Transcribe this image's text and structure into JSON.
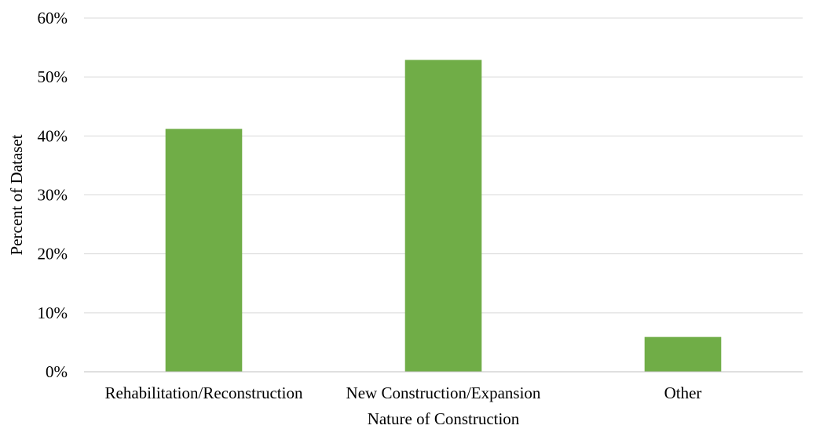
{
  "chart_data": {
    "type": "bar",
    "title": "",
    "xlabel": "Nature of Construction",
    "ylabel": "Percent of Dataset",
    "categories": [
      "Rehabilitation/Reconstruction",
      "New Construction/Expansion",
      "Other"
    ],
    "values": [
      41.2,
      52.9,
      5.9
    ],
    "ylim": [
      0,
      60
    ],
    "yticks": [
      0,
      10,
      20,
      30,
      40,
      50,
      60
    ],
    "ytick_labels": [
      "0%",
      "10%",
      "20%",
      "30%",
      "40%",
      "50%",
      "60%"
    ],
    "grid": true,
    "legend": "none",
    "colors": {
      "bar": "#70AD47",
      "grid": "#D9D9D9",
      "axis": "#BFBFBF"
    }
  }
}
